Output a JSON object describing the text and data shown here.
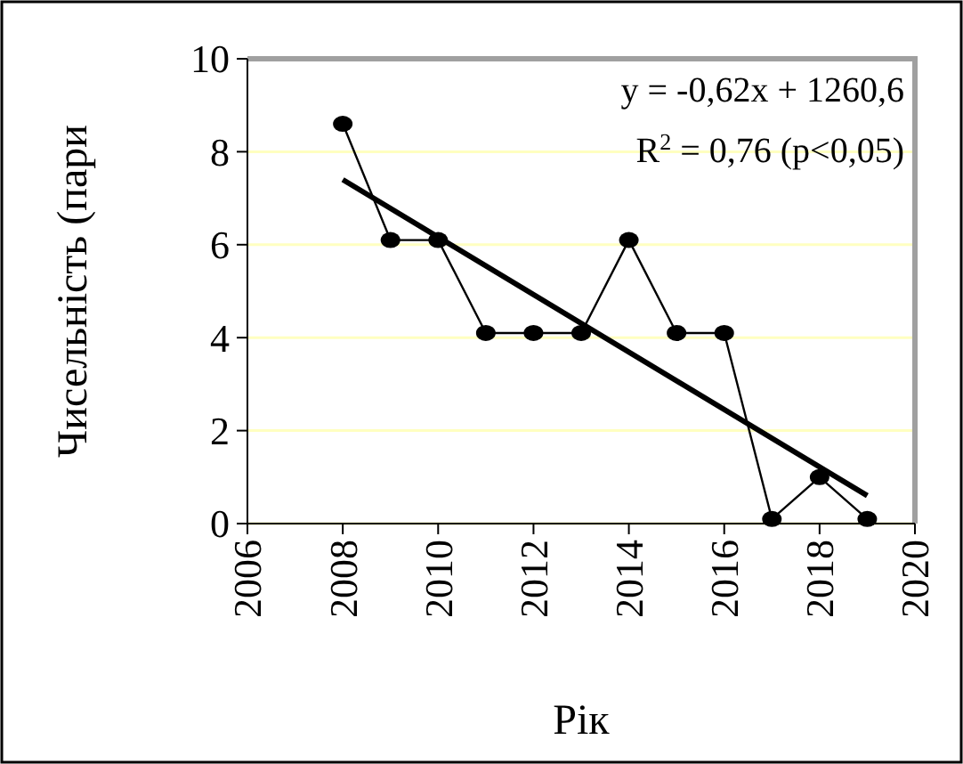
{
  "chart_data": {
    "type": "line",
    "xlabel": "Рік",
    "ylabel": "Чисельність (пари",
    "annotations": [
      "y = -0,62x + 1260,6",
      "R$^{2}$ = 0,76 (p<0,05)"
    ],
    "x": [
      2008,
      2009,
      2010,
      2011,
      2012,
      2013,
      2014,
      2015,
      2016,
      2017,
      2018,
      2019
    ],
    "series": [
      {
        "color": "#000000",
        "values": [
          8.6,
          6.1,
          6.1,
          4.1,
          4.1,
          4.1,
          6.1,
          4.1,
          4.1,
          0.1,
          1.0,
          0.1
        ],
        "marker": "circle"
      },
      {
        "type": "line",
        "color": "#000000",
        "x": [
          2008,
          2019
        ],
        "values": [
          7.4,
          0.6
        ],
        "marker": "none"
      }
    ],
    "xlim": [
      2006,
      2020
    ],
    "xticks": [
      2006,
      2008,
      2010,
      2012,
      2014,
      2016,
      2018,
      2020
    ],
    "ylim": [
      0,
      10
    ],
    "yticks": [
      0,
      2,
      4,
      6,
      8,
      10
    ],
    "grid": "y"
  }
}
